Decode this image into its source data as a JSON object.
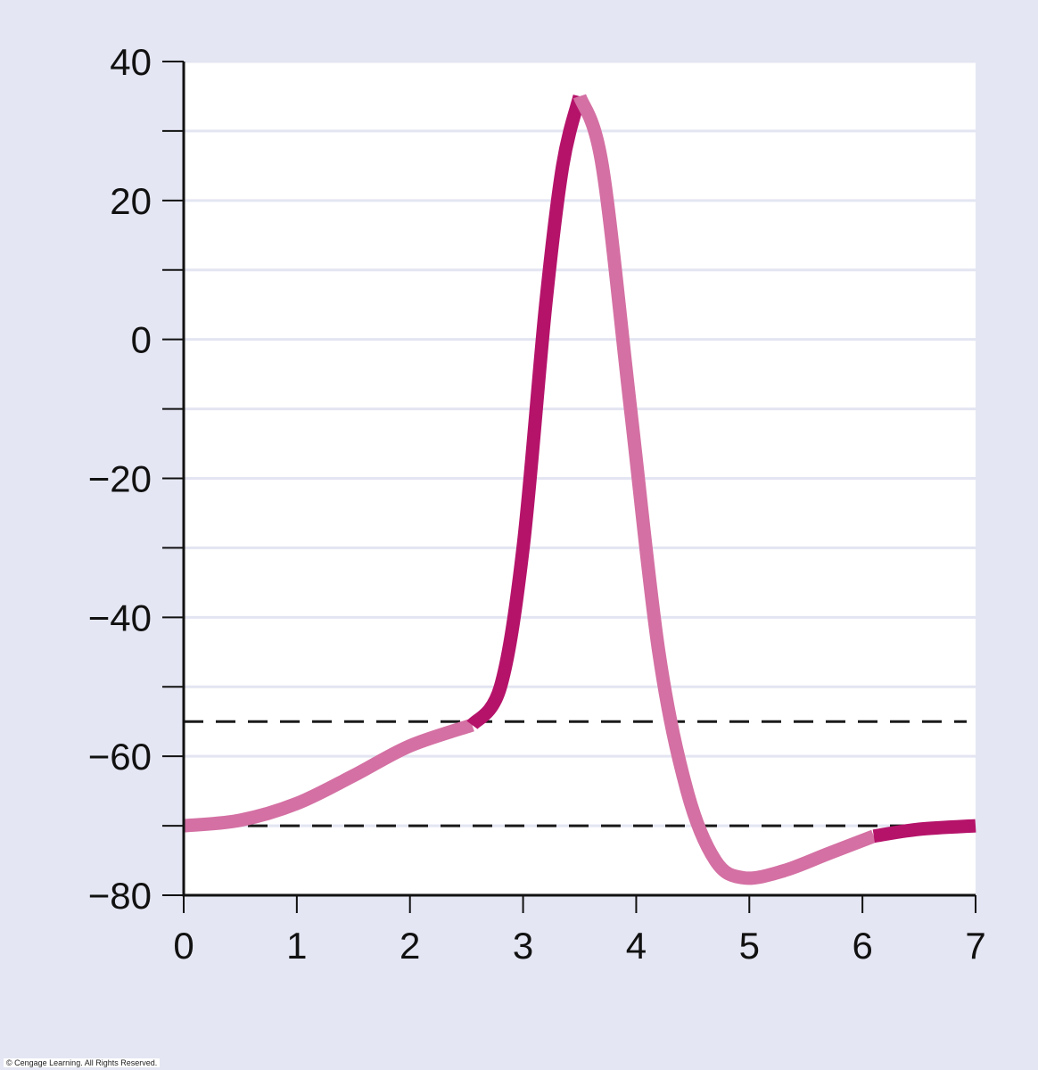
{
  "chart_data": {
    "type": "line",
    "title": "",
    "xlabel": "",
    "ylabel": "",
    "xlim": [
      0,
      7
    ],
    "ylim": [
      -80,
      40
    ],
    "x_ticks": [
      0,
      1,
      2,
      3,
      4,
      5,
      6,
      7
    ],
    "x_tick_labels": [
      "0",
      "1",
      "2",
      "3",
      "4",
      "5",
      "6",
      "7"
    ],
    "y_major_ticks": [
      -80,
      -60,
      -40,
      -20,
      0,
      20,
      40
    ],
    "y_tick_labels": [
      "−80",
      "−60",
      "−40",
      "−20",
      "0",
      "20",
      "40"
    ],
    "y_minor_ticks": [
      -70,
      -50,
      -30,
      -10,
      10,
      30
    ],
    "grid": true,
    "reference_lines": [
      -55,
      -70
    ],
    "series": [
      {
        "segment": "resting",
        "color": "#d470a3",
        "points": [
          [
            0,
            -70
          ],
          [
            0.5,
            -69.2
          ],
          [
            1,
            -66.8
          ],
          [
            1.5,
            -62.8
          ],
          [
            2,
            -58.5
          ],
          [
            2.55,
            -55.5
          ]
        ]
      },
      {
        "segment": "depolarization",
        "color": "#b5136a",
        "points": [
          [
            2.55,
            -55.5
          ],
          [
            2.8,
            -50
          ],
          [
            3.0,
            -30
          ],
          [
            3.2,
            5
          ],
          [
            3.35,
            25
          ],
          [
            3.5,
            35
          ]
        ]
      },
      {
        "segment": "repolarization",
        "color": "#d470a3",
        "points": [
          [
            3.5,
            35
          ],
          [
            3.7,
            25
          ],
          [
            3.95,
            -10
          ],
          [
            4.2,
            -45
          ],
          [
            4.45,
            -65
          ],
          [
            4.7,
            -75
          ],
          [
            4.95,
            -77.5
          ],
          [
            5.3,
            -76.5
          ],
          [
            5.7,
            -74
          ],
          [
            6.1,
            -71.5
          ]
        ]
      },
      {
        "segment": "recovery",
        "color": "#b5136a",
        "points": [
          [
            6.1,
            -71.5
          ],
          [
            6.5,
            -70.5
          ],
          [
            7,
            -70
          ]
        ]
      }
    ]
  },
  "credit": "© Cengage Learning. All Rights Reserved."
}
